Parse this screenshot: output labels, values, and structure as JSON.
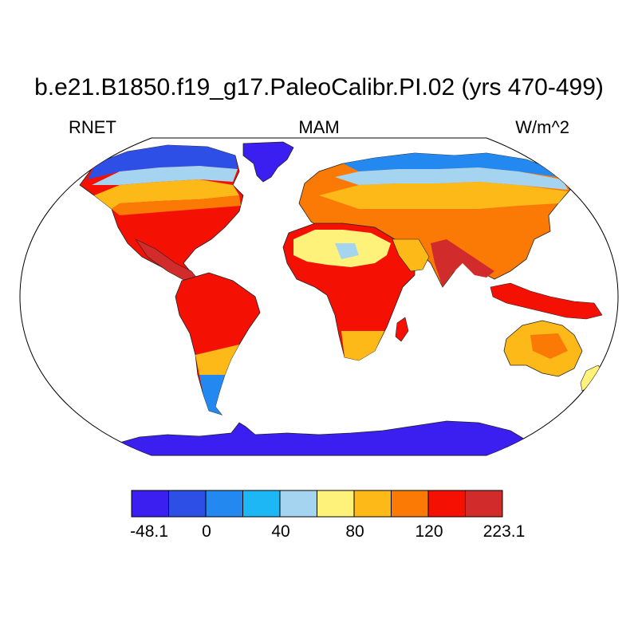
{
  "title": "b.e21.B1850.f19_g17.PaleoCalibr.PI.02 (yrs 470-499)",
  "left_label": "RNET",
  "center_label": "MAM",
  "right_label": "W/m^2",
  "colorbar": {
    "colors": [
      "#3a1ff0",
      "#2e4fe6",
      "#2388ef",
      "#1db7f5",
      "#a4d4f0",
      "#fff27a",
      "#fdb918",
      "#fb7a06",
      "#f51004",
      "#d22b2b"
    ],
    "tick_labels": [
      "-48.1",
      "0",
      "40",
      "80",
      "120",
      "223.1"
    ]
  },
  "map_colors": {
    "ocean": "#ffffff",
    "coast": "#000000"
  }
}
